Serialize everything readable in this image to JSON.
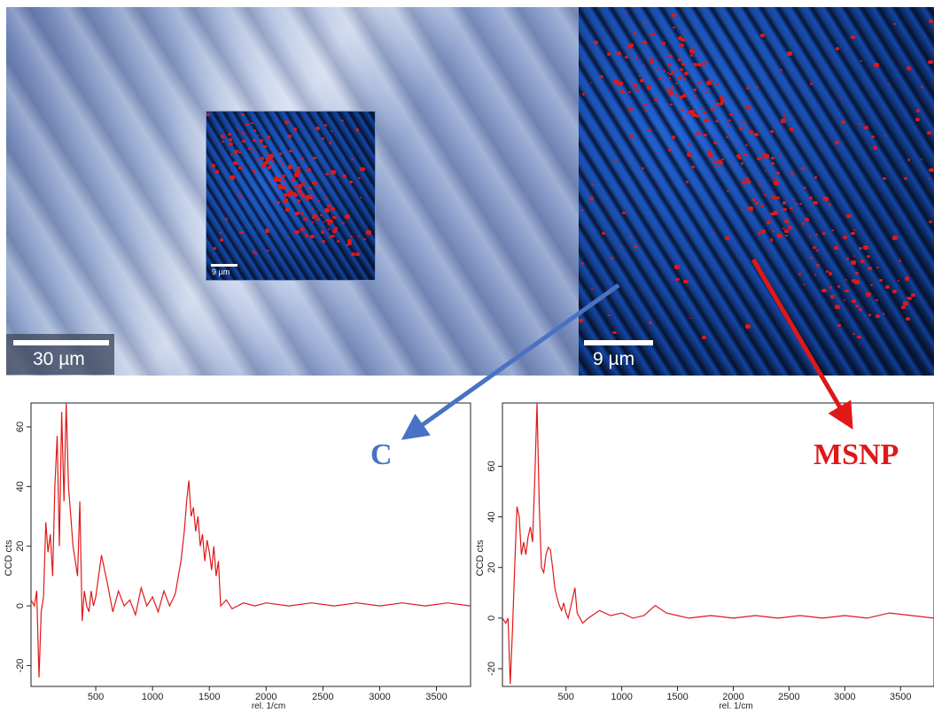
{
  "images": {
    "optical": {
      "scale_label": "30 µm"
    },
    "inset": {
      "scale_label": "9 µm"
    },
    "raman": {
      "scale_label": "9 µm"
    }
  },
  "annotations": {
    "left_label": "C",
    "left_color": "#4a72c4",
    "right_label": "MSNP",
    "right_color": "#e01818"
  },
  "chart_data": [
    {
      "type": "line",
      "title": "",
      "xlabel": "rel. 1/cm",
      "ylabel": "CCD cts",
      "xlim": [
        -70,
        3800
      ],
      "ylim": [
        -27,
        68
      ],
      "xticks": [
        500,
        1000,
        1500,
        2000,
        2500,
        3000,
        3500
      ],
      "yticks": [
        -20,
        0,
        20,
        40,
        60
      ],
      "color": "#e01818",
      "series": [
        {
          "x": [
            -70,
            -40,
            -20,
            0,
            20,
            40,
            60,
            80,
            100,
            120,
            140,
            160,
            180,
            200,
            220,
            240,
            260,
            280,
            300,
            320,
            340,
            360,
            380,
            400,
            420,
            440,
            460,
            480,
            500,
            550,
            600,
            650,
            700,
            750,
            800,
            850,
            900,
            950,
            1000,
            1050,
            1100,
            1150,
            1200,
            1250,
            1280,
            1300,
            1320,
            1340,
            1360,
            1380,
            1400,
            1420,
            1440,
            1460,
            1480,
            1500,
            1520,
            1540,
            1560,
            1580,
            1600,
            1650,
            1700,
            1800,
            1900,
            2000,
            2200,
            2400,
            2600,
            2800,
            3000,
            3200,
            3400,
            3600,
            3800
          ],
          "y": [
            2,
            0,
            5,
            -24,
            -2,
            3,
            28,
            18,
            24,
            10,
            40,
            57,
            20,
            65,
            35,
            68,
            40,
            30,
            20,
            15,
            10,
            35,
            -5,
            5,
            0,
            -2,
            5,
            0,
            3,
            17,
            8,
            -2,
            5,
            0,
            2,
            -3,
            6,
            0,
            3,
            -2,
            5,
            0,
            4,
            15,
            25,
            35,
            42,
            30,
            33,
            25,
            30,
            20,
            24,
            15,
            22,
            18,
            12,
            20,
            10,
            15,
            0,
            2,
            -1,
            1,
            0,
            1,
            0,
            1,
            0,
            1,
            0,
            1,
            0,
            1,
            0
          ]
        }
      ]
    },
    {
      "type": "line",
      "title": "",
      "xlabel": "rel. 1/cm",
      "ylabel": "CCD cts",
      "xlim": [
        -70,
        3800
      ],
      "ylim": [
        -27,
        85
      ],
      "xticks": [
        500,
        1000,
        1500,
        2000,
        2500,
        3000,
        3500
      ],
      "yticks": [
        -20,
        0,
        20,
        40,
        60
      ],
      "color": "#e01818",
      "series": [
        {
          "x": [
            -70,
            -40,
            -20,
            0,
            20,
            40,
            60,
            80,
            100,
            120,
            140,
            160,
            180,
            200,
            220,
            240,
            260,
            280,
            300,
            320,
            340,
            360,
            380,
            400,
            420,
            440,
            460,
            480,
            500,
            520,
            540,
            560,
            580,
            600,
            650,
            700,
            800,
            900,
            1000,
            1100,
            1200,
            1300,
            1400,
            1500,
            1600,
            1800,
            2000,
            2200,
            2400,
            2600,
            2800,
            3000,
            3200,
            3400,
            3600,
            3800
          ],
          "y": [
            0,
            -2,
            0,
            -26,
            -5,
            20,
            44,
            40,
            25,
            30,
            25,
            32,
            36,
            30,
            55,
            85,
            45,
            20,
            18,
            25,
            28,
            27,
            20,
            12,
            8,
            5,
            3,
            6,
            2,
            0,
            4,
            8,
            12,
            2,
            -2,
            0,
            3,
            1,
            2,
            0,
            1,
            5,
            2,
            1,
            0,
            1,
            0,
            1,
            0,
            1,
            0,
            1,
            0,
            2,
            1,
            0
          ]
        }
      ]
    }
  ]
}
